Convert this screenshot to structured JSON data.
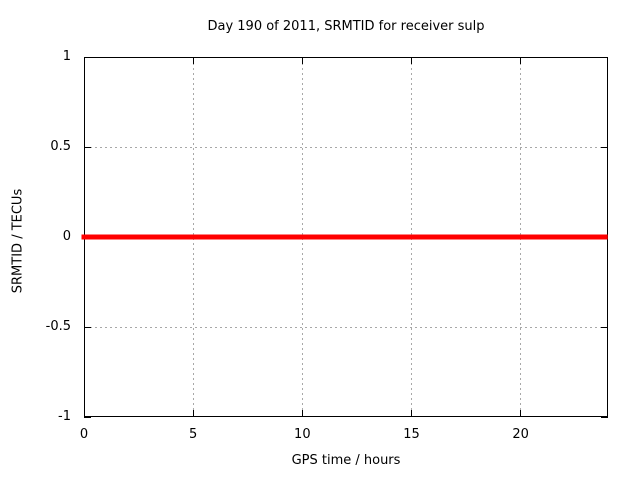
{
  "chart_data": {
    "type": "line",
    "title": "Day 190 of 2011, SRMTID for receiver sulp",
    "xlabel": "GPS time / hours",
    "ylabel": "SRMTID / TECUs",
    "xlim": [
      0,
      24
    ],
    "ylim": [
      -1,
      1
    ],
    "xticks": [
      0,
      5,
      10,
      15,
      20
    ],
    "yticks": [
      -1,
      -0.5,
      0,
      0.5,
      1
    ],
    "grid": true,
    "legend": "none",
    "background_color": "#ffffff",
    "axis_color": "#000000",
    "grid_color": "#a8a8a8",
    "series": [
      {
        "name": "srmtid",
        "color": "#ff0000",
        "line_width": 5,
        "x": [
          0,
          23.87
        ],
        "y": [
          0,
          0
        ]
      }
    ]
  }
}
